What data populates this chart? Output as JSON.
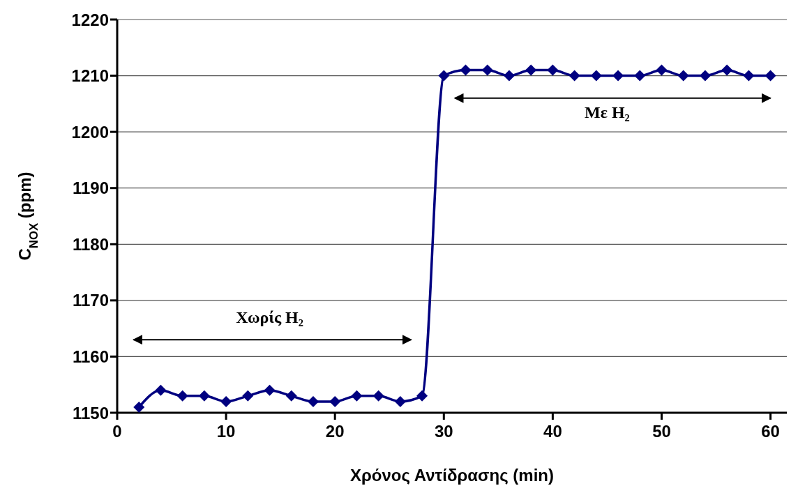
{
  "chart_data": {
    "type": "line",
    "xlabel": "Χρόνος Αντίδρασης (min)",
    "ylabel": "C$_{NOX}$ (ppm)",
    "x": [
      2,
      4,
      6,
      8,
      10,
      12,
      14,
      16,
      18,
      20,
      22,
      24,
      26,
      28,
      30,
      32,
      34,
      36,
      38,
      40,
      42,
      44,
      46,
      48,
      50,
      52,
      54,
      56,
      58,
      60
    ],
    "series": [
      {
        "color": "#000080",
        "values": [
          1151,
          1154,
          1153,
          1153,
          1152,
          1153,
          1154,
          1153,
          1152,
          1152,
          1153,
          1153,
          1152,
          1153,
          1210,
          1211,
          1211,
          1210,
          1211,
          1211,
          1210,
          1210,
          1210,
          1210,
          1211,
          1210,
          1210,
          1211,
          1210,
          1210
        ]
      }
    ],
    "xlim": [
      0,
      61.5
    ],
    "xticks": [
      0,
      10,
      20,
      30,
      40,
      50,
      60
    ],
    "ylim": [
      1150,
      1220
    ],
    "yticks": [
      1150,
      1160,
      1170,
      1180,
      1190,
      1200,
      1210,
      1220
    ],
    "grid": "y",
    "marker": "diamond",
    "line_style": "solid",
    "legend": false,
    "annotations": [
      "Χωρίς H₂",
      "Με H₂"
    ]
  }
}
